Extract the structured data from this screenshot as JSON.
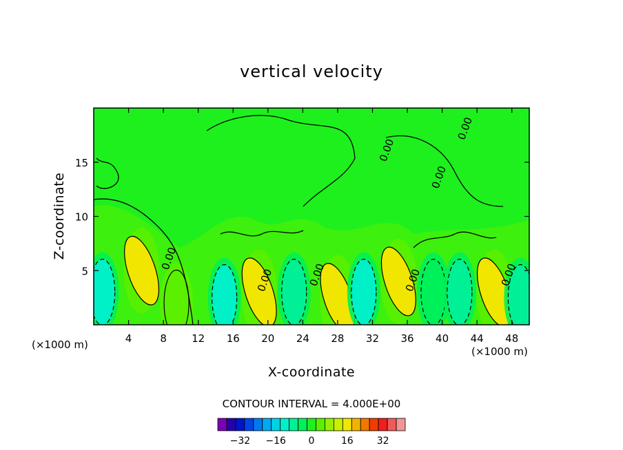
{
  "chart_data": {
    "type": "heatmap",
    "title": "vertical velocity",
    "xlabel": "X-coordinate",
    "ylabel": "Z-coordinate",
    "x_unit_label": "(×1000 m)",
    "x_unit_label_right": "(×1000 m)",
    "xlim": [
      0,
      50
    ],
    "ylim": [
      0,
      20
    ],
    "x_ticks": [
      4,
      8,
      12,
      16,
      20,
      24,
      28,
      32,
      36,
      40,
      44,
      48
    ],
    "y_ticks": [
      5,
      10,
      15
    ],
    "contour_interval_text": "CONTOUR INTERVAL = 4.000E+00",
    "contour_interval": 4,
    "contour_label": "0.00",
    "colorbar": {
      "levels": [
        -40,
        -36,
        -32,
        -28,
        -24,
        -20,
        -16,
        -12,
        -8,
        -4,
        0,
        4,
        8,
        12,
        16,
        20,
        24,
        28,
        32,
        36,
        40
      ],
      "colors": [
        "#7b00b4",
        "#2600a8",
        "#0014c8",
        "#0046e6",
        "#0078f0",
        "#00aaf0",
        "#00d2e6",
        "#00f0c8",
        "#00f096",
        "#00f05a",
        "#1ef01e",
        "#5af000",
        "#96f000",
        "#c8f000",
        "#f0e600",
        "#f0b400",
        "#f07800",
        "#f03c00",
        "#f01e1e",
        "#f05a5a",
        "#f09696"
      ],
      "tick_values": [
        -32,
        -16,
        0,
        16,
        32
      ],
      "tick_labels": [
        "−32",
        "−16",
        "0",
        "16",
        "32"
      ]
    },
    "cells": [
      {
        "x": 1,
        "z": 3,
        "w": -10
      },
      {
        "x": 5.5,
        "z": 5,
        "w": 16
      },
      {
        "x": 9.5,
        "z": 2,
        "w": 4
      },
      {
        "x": 15,
        "z": 2.5,
        "w": -10
      },
      {
        "x": 19,
        "z": 3,
        "w": 18
      },
      {
        "x": 23,
        "z": 3,
        "w": -6
      },
      {
        "x": 28,
        "z": 2.5,
        "w": 16
      },
      {
        "x": 31,
        "z": 3,
        "w": -10
      },
      {
        "x": 35,
        "z": 4,
        "w": 16
      },
      {
        "x": 39,
        "z": 3,
        "w": -4
      },
      {
        "x": 42,
        "z": 3,
        "w": -6
      },
      {
        "x": 46,
        "z": 3,
        "w": 16
      },
      {
        "x": 49,
        "z": 2.5,
        "w": -8
      }
    ]
  }
}
